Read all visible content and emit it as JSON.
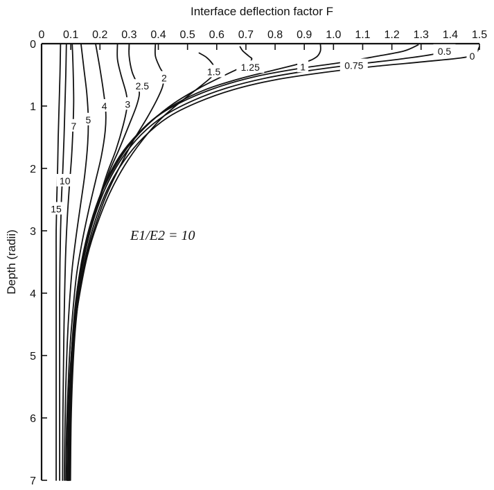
{
  "chart_data": {
    "type": "line",
    "xlabel": "Interface deflection factor F",
    "ylabel": "Depth (radii)",
    "annotation": "E1/E2 = 10",
    "xlim": [
      0,
      1.5
    ],
    "ylim": [
      0,
      7
    ],
    "x_axis_position": "top",
    "y_inverted": true,
    "grid": false,
    "legend": "none",
    "xticks": [
      "0",
      "0.1",
      "0.2",
      "0.3",
      "0.4",
      "0.5",
      "0.6",
      "0.7",
      "0.8",
      "0.9",
      "1.0",
      "1.1",
      "1.2",
      "1.3",
      "1.4",
      "1.5"
    ],
    "yticks": [
      "0",
      "1",
      "2",
      "3",
      "4",
      "5",
      "6",
      "7"
    ],
    "series": [
      {
        "name": "15",
        "label_at": {
          "x": 0.05,
          "y": 2.65
        },
        "points": [
          [
            0.065,
            0
          ],
          [
            0.063,
            0.5
          ],
          [
            0.06,
            1
          ],
          [
            0.057,
            1.5
          ],
          [
            0.055,
            2
          ],
          [
            0.052,
            2.5
          ],
          [
            0.05,
            3
          ],
          [
            0.05,
            3.5
          ],
          [
            0.05,
            4
          ],
          [
            0.05,
            4.5
          ],
          [
            0.05,
            5
          ],
          [
            0.05,
            5.5
          ],
          [
            0.05,
            6
          ],
          [
            0.05,
            6.5
          ],
          [
            0.05,
            7
          ]
        ]
      },
      {
        "name": "10",
        "label_at": {
          "x": 0.08,
          "y": 2.2
        },
        "points": [
          [
            0.085,
            0
          ],
          [
            0.083,
            0.5
          ],
          [
            0.08,
            1
          ],
          [
            0.077,
            1.5
          ],
          [
            0.073,
            2
          ],
          [
            0.068,
            2.5
          ],
          [
            0.065,
            3
          ],
          [
            0.063,
            3.5
          ],
          [
            0.062,
            4
          ],
          [
            0.062,
            4.5
          ],
          [
            0.062,
            5
          ],
          [
            0.062,
            5.5
          ],
          [
            0.062,
            6
          ],
          [
            0.062,
            6.5
          ],
          [
            0.062,
            7
          ]
        ]
      },
      {
        "name": "7",
        "label_at": {
          "x": 0.11,
          "y": 1.32
        },
        "points": [
          [
            0.105,
            0
          ],
          [
            0.108,
            0.4
          ],
          [
            0.11,
            0.9
          ],
          [
            0.108,
            1.3
          ],
          [
            0.103,
            1.8
          ],
          [
            0.095,
            2.3
          ],
          [
            0.088,
            2.8
          ],
          [
            0.083,
            3.3
          ],
          [
            0.08,
            3.8
          ],
          [
            0.077,
            4.5
          ],
          [
            0.075,
            5.2
          ],
          [
            0.073,
            6
          ],
          [
            0.072,
            7
          ]
        ]
      },
      {
        "name": "5",
        "label_at": {
          "x": 0.16,
          "y": 1.22
        },
        "points": [
          [
            0.135,
            0
          ],
          [
            0.145,
            0.4
          ],
          [
            0.155,
            0.8
          ],
          [
            0.16,
            1.2
          ],
          [
            0.158,
            1.6
          ],
          [
            0.148,
            2.1
          ],
          [
            0.133,
            2.6
          ],
          [
            0.118,
            3.1
          ],
          [
            0.105,
            3.6
          ],
          [
            0.095,
            4.2
          ],
          [
            0.088,
            4.8
          ],
          [
            0.083,
            5.5
          ],
          [
            0.08,
            6.2
          ],
          [
            0.078,
            7
          ]
        ]
      },
      {
        "name": "4",
        "label_at": {
          "x": 0.215,
          "y": 1.0
        },
        "points": [
          [
            0.185,
            0
          ],
          [
            0.2,
            0.4
          ],
          [
            0.213,
            0.8
          ],
          [
            0.22,
            1.1
          ],
          [
            0.218,
            1.4
          ],
          [
            0.205,
            1.8
          ],
          [
            0.185,
            2.2
          ],
          [
            0.16,
            2.7
          ],
          [
            0.138,
            3.2
          ],
          [
            0.12,
            3.7
          ],
          [
            0.107,
            4.3
          ],
          [
            0.097,
            4.9
          ],
          [
            0.09,
            5.6
          ],
          [
            0.085,
            6.3
          ],
          [
            0.083,
            7
          ]
        ]
      },
      {
        "name": "3",
        "label_at": {
          "x": 0.295,
          "y": 0.97
        },
        "points": [
          [
            0.26,
            0
          ],
          [
            0.26,
            0.25
          ],
          [
            0.272,
            0.5
          ],
          [
            0.29,
            0.8
          ],
          [
            0.293,
            1.0
          ],
          [
            0.28,
            1.3
          ],
          [
            0.255,
            1.7
          ],
          [
            0.223,
            2.1
          ],
          [
            0.19,
            2.6
          ],
          [
            0.16,
            3.1
          ],
          [
            0.136,
            3.6
          ],
          [
            0.118,
            4.2
          ],
          [
            0.105,
            4.8
          ],
          [
            0.096,
            5.4
          ],
          [
            0.09,
            6.1
          ],
          [
            0.087,
            7
          ]
        ]
      },
      {
        "name": "2.5",
        "label_at": {
          "x": 0.345,
          "y": 0.68
        },
        "points": [
          [
            0.3,
            0
          ],
          [
            0.3,
            0.2
          ],
          [
            0.31,
            0.45
          ],
          [
            0.328,
            0.65
          ],
          [
            0.335,
            0.8
          ],
          [
            0.325,
            1.0
          ],
          [
            0.3,
            1.3
          ],
          [
            0.265,
            1.7
          ],
          [
            0.228,
            2.1
          ],
          [
            0.192,
            2.6
          ],
          [
            0.16,
            3.1
          ],
          [
            0.136,
            3.6
          ],
          [
            0.118,
            4.2
          ],
          [
            0.105,
            4.8
          ],
          [
            0.096,
            5.5
          ],
          [
            0.091,
            6.2
          ],
          [
            0.089,
            7
          ]
        ]
      },
      {
        "name": "2",
        "label_at": {
          "x": 0.42,
          "y": 0.55
        },
        "points": [
          [
            0.39,
            0
          ],
          [
            0.39,
            0.2
          ],
          [
            0.405,
            0.38
          ],
          [
            0.418,
            0.5
          ],
          [
            0.415,
            0.68
          ],
          [
            0.395,
            0.9
          ],
          [
            0.36,
            1.2
          ],
          [
            0.315,
            1.55
          ],
          [
            0.265,
            2.0
          ],
          [
            0.22,
            2.45
          ],
          [
            0.182,
            2.95
          ],
          [
            0.152,
            3.45
          ],
          [
            0.13,
            4.0
          ],
          [
            0.113,
            4.6
          ],
          [
            0.102,
            5.2
          ],
          [
            0.095,
            5.9
          ],
          [
            0.091,
            6.5
          ],
          [
            0.09,
            7
          ]
        ]
      },
      {
        "name": "1.5",
        "label_at": {
          "x": 0.59,
          "y": 0.45
        },
        "points": [
          [
            0.54,
            0.15
          ],
          [
            0.565,
            0.22
          ],
          [
            0.585,
            0.32
          ],
          [
            0.595,
            0.42
          ],
          [
            0.585,
            0.52
          ],
          [
            0.545,
            0.68
          ],
          [
            0.48,
            0.92
          ],
          [
            0.41,
            1.2
          ],
          [
            0.345,
            1.55
          ],
          [
            0.285,
            1.95
          ],
          [
            0.233,
            2.4
          ],
          [
            0.19,
            2.9
          ],
          [
            0.157,
            3.4
          ],
          [
            0.133,
            3.95
          ],
          [
            0.115,
            4.5
          ],
          [
            0.103,
            5.1
          ],
          [
            0.096,
            5.8
          ],
          [
            0.092,
            6.4
          ],
          [
            0.091,
            7
          ]
        ]
      },
      {
        "name": "1.25",
        "label_at": {
          "x": 0.715,
          "y": 0.38
        },
        "points": [
          [
            0.68,
            0.05
          ],
          [
            0.69,
            0.12
          ],
          [
            0.71,
            0.2
          ],
          [
            0.72,
            0.25
          ],
          [
            0.7,
            0.34
          ],
          [
            0.63,
            0.5
          ],
          [
            0.545,
            0.7
          ],
          [
            0.455,
            0.95
          ],
          [
            0.375,
            1.25
          ],
          [
            0.305,
            1.6
          ],
          [
            0.248,
            2.0
          ],
          [
            0.2,
            2.45
          ],
          [
            0.165,
            2.95
          ],
          [
            0.138,
            3.5
          ],
          [
            0.119,
            4.05
          ],
          [
            0.106,
            4.7
          ],
          [
            0.098,
            5.4
          ],
          [
            0.094,
            6.1
          ],
          [
            0.092,
            7
          ]
        ]
      },
      {
        "name": "1",
        "label_at": {
          "x": 0.895,
          "y": 0.37
        },
        "points": [
          [
            0.955,
            0
          ],
          [
            0.955,
            0.12
          ],
          [
            0.94,
            0.22
          ],
          [
            0.9,
            0.3
          ],
          [
            0.8,
            0.42
          ],
          [
            0.68,
            0.56
          ],
          [
            0.565,
            0.73
          ],
          [
            0.465,
            0.95
          ],
          [
            0.38,
            1.22
          ],
          [
            0.31,
            1.55
          ],
          [
            0.252,
            1.93
          ],
          [
            0.205,
            2.38
          ],
          [
            0.168,
            2.88
          ],
          [
            0.14,
            3.42
          ],
          [
            0.121,
            4.0
          ],
          [
            0.108,
            4.65
          ],
          [
            0.1,
            5.35
          ],
          [
            0.095,
            6.1
          ],
          [
            0.093,
            7
          ]
        ]
      },
      {
        "name": "0.75",
        "label_at": {
          "x": 1.07,
          "y": 0.35
        },
        "points": [
          [
            1.29,
            0.02
          ],
          [
            1.24,
            0.12
          ],
          [
            1.15,
            0.2
          ],
          [
            1.03,
            0.3
          ],
          [
            0.88,
            0.4
          ],
          [
            0.74,
            0.52
          ],
          [
            0.615,
            0.68
          ],
          [
            0.505,
            0.88
          ],
          [
            0.41,
            1.12
          ],
          [
            0.333,
            1.43
          ],
          [
            0.268,
            1.8
          ],
          [
            0.217,
            2.25
          ],
          [
            0.177,
            2.75
          ],
          [
            0.147,
            3.3
          ],
          [
            0.126,
            3.9
          ],
          [
            0.111,
            4.55
          ],
          [
            0.102,
            5.25
          ],
          [
            0.097,
            6.0
          ],
          [
            0.095,
            7
          ]
        ]
      },
      {
        "name": "0.5",
        "label_at": {
          "x": 1.38,
          "y": 0.12
        },
        "points": [
          [
            1.4,
            0.02
          ],
          [
            1.36,
            0.15
          ],
          [
            1.24,
            0.24
          ],
          [
            1.08,
            0.33
          ],
          [
            0.92,
            0.43
          ],
          [
            0.77,
            0.55
          ],
          [
            0.635,
            0.71
          ],
          [
            0.52,
            0.91
          ],
          [
            0.422,
            1.15
          ],
          [
            0.341,
            1.46
          ],
          [
            0.275,
            1.84
          ],
          [
            0.222,
            2.28
          ],
          [
            0.181,
            2.78
          ],
          [
            0.15,
            3.33
          ],
          [
            0.128,
            3.93
          ],
          [
            0.113,
            4.58
          ],
          [
            0.104,
            5.3
          ],
          [
            0.099,
            6.05
          ],
          [
            0.097,
            7
          ]
        ]
      },
      {
        "name": "0",
        "label_at": {
          "x": 1.475,
          "y": 0.2
        },
        "points": [
          [
            1.5,
            0.05
          ],
          [
            1.47,
            0.2
          ],
          [
            1.33,
            0.28
          ],
          [
            1.15,
            0.36
          ],
          [
            0.97,
            0.46
          ],
          [
            0.8,
            0.58
          ],
          [
            0.655,
            0.74
          ],
          [
            0.535,
            0.94
          ],
          [
            0.433,
            1.18
          ],
          [
            0.35,
            1.5
          ],
          [
            0.282,
            1.88
          ],
          [
            0.227,
            2.32
          ],
          [
            0.185,
            2.82
          ],
          [
            0.153,
            3.37
          ],
          [
            0.13,
            3.97
          ],
          [
            0.115,
            4.62
          ],
          [
            0.106,
            5.35
          ],
          [
            0.101,
            6.1
          ],
          [
            0.099,
            7
          ]
        ]
      }
    ]
  }
}
